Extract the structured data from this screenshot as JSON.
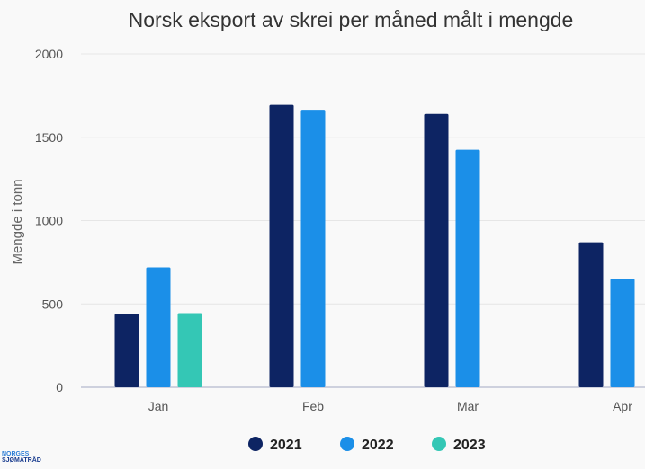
{
  "chart_data": {
    "type": "bar",
    "title": "Norsk eksport av skrei per måned målt i mengde",
    "xlabel": "",
    "ylabel": "Mengde i tonn",
    "categories": [
      "Jan",
      "Feb",
      "Mar",
      "Apr"
    ],
    "ylim": [
      0,
      2000
    ],
    "yticks": [
      0,
      500,
      1000,
      1500,
      2000
    ],
    "grid": true,
    "legend_position": "bottom-center",
    "series": [
      {
        "name": "2021",
        "color": "#0d2463",
        "values": [
          440,
          1695,
          1640,
          870
        ]
      },
      {
        "name": "2022",
        "color": "#1b8fe8",
        "values": [
          720,
          1665,
          1425,
          650
        ]
      },
      {
        "name": "2023",
        "color": "#34c7b5",
        "values": [
          445,
          null,
          null,
          null
        ]
      }
    ]
  },
  "logo": {
    "line1": "NORGES",
    "line2": "SJØMATRÅD"
  }
}
